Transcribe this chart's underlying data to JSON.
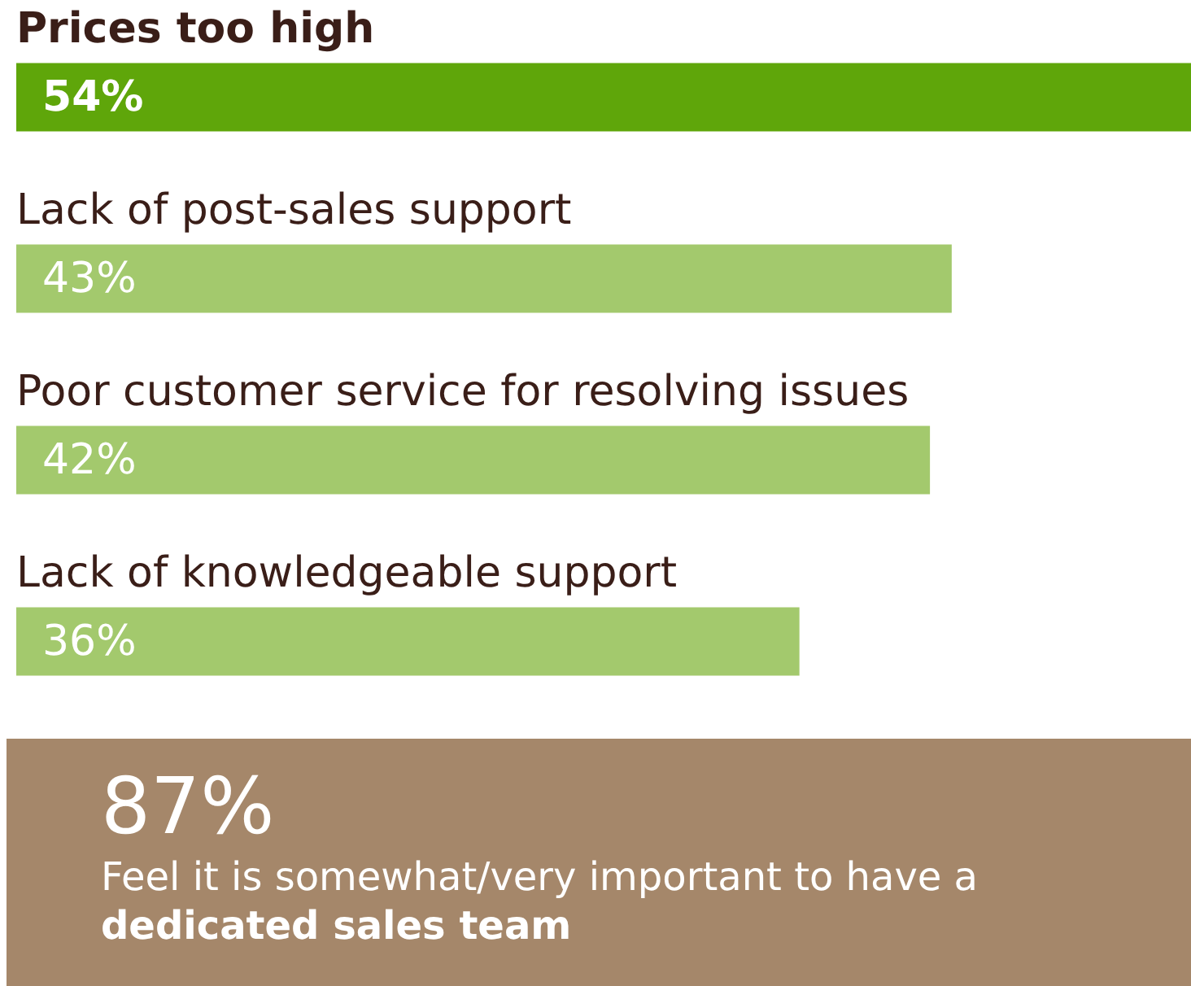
{
  "chart_data": {
    "type": "bar",
    "orientation": "horizontal",
    "categories": [
      "Prices too high",
      "Lack of post-sales support",
      "Poor customer service for resolving issues",
      "Lack of knowledgeable support"
    ],
    "values": [
      54,
      43,
      42,
      36
    ],
    "colors": [
      "#5fa60a",
      "#a3c96d",
      "#a3c96d",
      "#a3c96d"
    ],
    "value_labels": [
      "54%",
      "43%",
      "42%",
      "36%"
    ],
    "annotations": [
      "87%",
      "Feel it is somewhat/very important to have a",
      "dedicated sales team"
    ]
  }
}
